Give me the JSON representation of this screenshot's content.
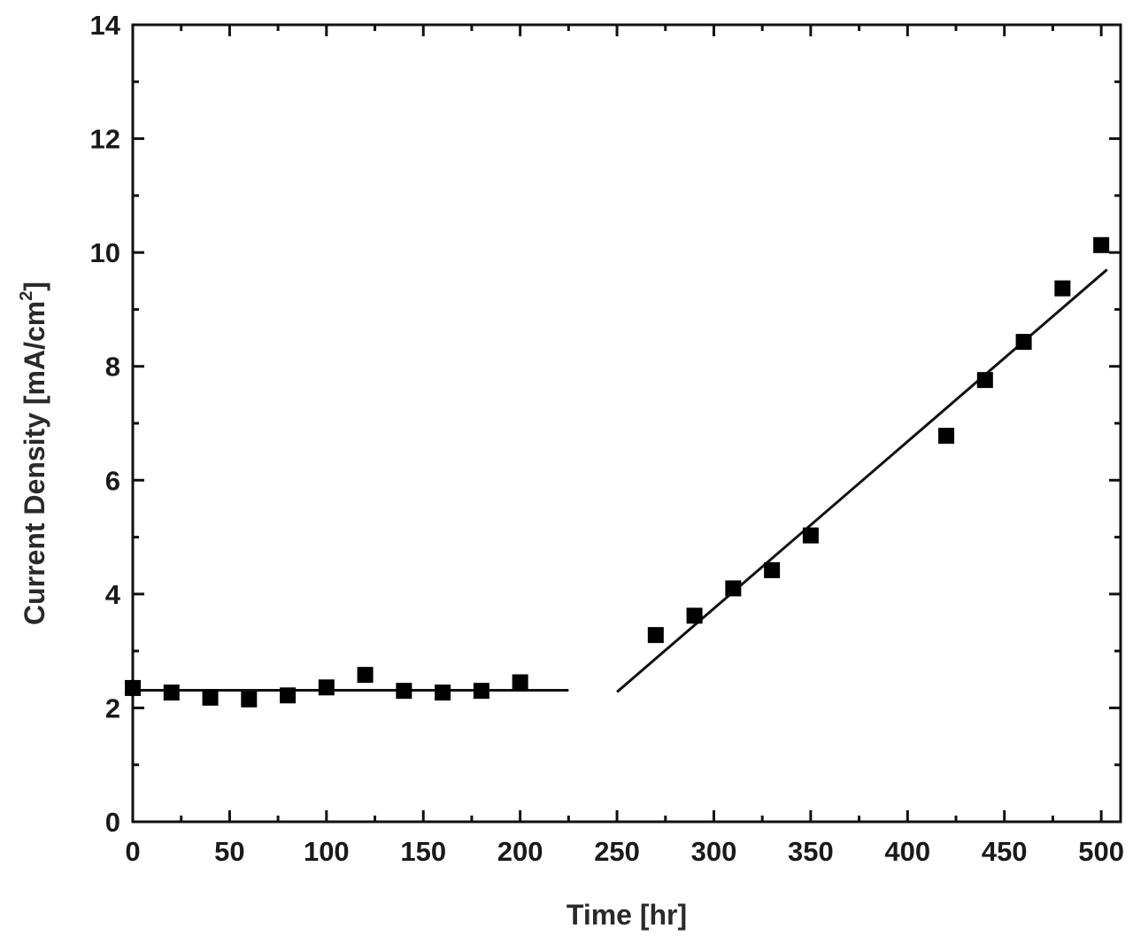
{
  "chart_data": {
    "type": "scatter",
    "xlabel": "Time [hr]",
    "ylabel_main": "Current Density [mA/cm",
    "ylabel_sup": "2",
    "ylabel_end": "]",
    "xlim": [
      0,
      510
    ],
    "ylim": [
      0,
      14
    ],
    "xticks": [
      0,
      50,
      100,
      150,
      200,
      250,
      300,
      350,
      400,
      450,
      500
    ],
    "yticks": [
      0,
      2,
      4,
      6,
      8,
      10,
      12,
      14
    ],
    "grid": false,
    "points": [
      {
        "x": 0,
        "y": 2.35
      },
      {
        "x": 20,
        "y": 2.27
      },
      {
        "x": 40,
        "y": 2.18
      },
      {
        "x": 60,
        "y": 2.15
      },
      {
        "x": 80,
        "y": 2.22
      },
      {
        "x": 100,
        "y": 2.36
      },
      {
        "x": 120,
        "y": 2.58
      },
      {
        "x": 140,
        "y": 2.3
      },
      {
        "x": 160,
        "y": 2.27
      },
      {
        "x": 180,
        "y": 2.3
      },
      {
        "x": 200,
        "y": 2.45
      },
      {
        "x": 270,
        "y": 3.28
      },
      {
        "x": 290,
        "y": 3.62
      },
      {
        "x": 310,
        "y": 4.1
      },
      {
        "x": 330,
        "y": 4.42
      },
      {
        "x": 350,
        "y": 5.03
      },
      {
        "x": 420,
        "y": 6.78
      },
      {
        "x": 440,
        "y": 7.76
      },
      {
        "x": 460,
        "y": 8.43
      },
      {
        "x": 480,
        "y": 9.37
      },
      {
        "x": 500,
        "y": 10.13
      }
    ],
    "fit_lines": [
      {
        "x": [
          0,
          225
        ],
        "y": [
          2.31,
          2.31
        ]
      },
      {
        "x": [
          250,
          503
        ],
        "y": [
          2.28,
          9.7
        ]
      }
    ]
  }
}
